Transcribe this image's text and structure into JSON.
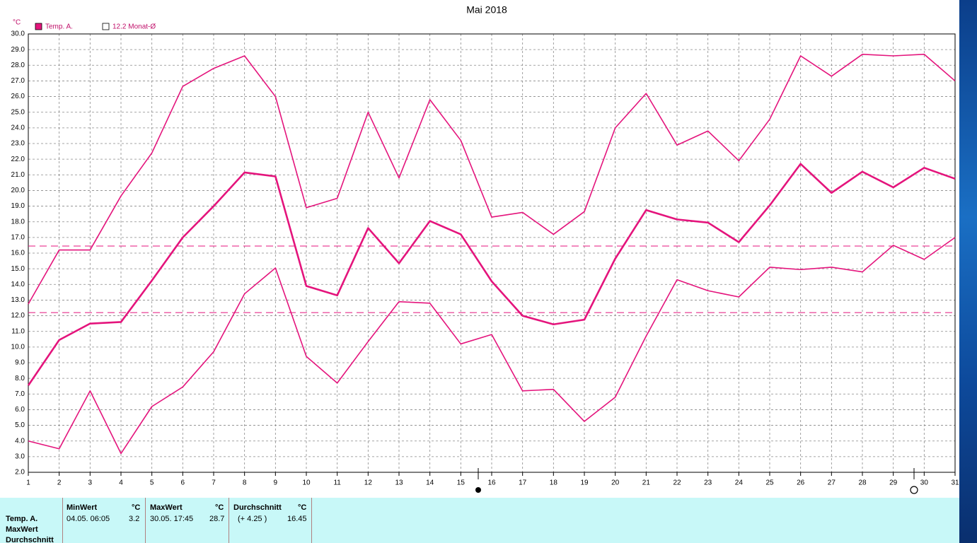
{
  "chart_data": {
    "type": "line",
    "title": "Mai 2018",
    "y_unit": "°C",
    "x": [
      1,
      2,
      3,
      4,
      5,
      6,
      7,
      8,
      9,
      10,
      11,
      12,
      13,
      14,
      15,
      16,
      17,
      18,
      19,
      20,
      21,
      22,
      23,
      24,
      25,
      26,
      27,
      28,
      29,
      30,
      31
    ],
    "xlim": [
      1,
      31
    ],
    "xticks": [
      1,
      2,
      3,
      4,
      5,
      6,
      7,
      8,
      9,
      10,
      11,
      12,
      13,
      14,
      15,
      16,
      17,
      18,
      19,
      20,
      21,
      22,
      23,
      24,
      25,
      26,
      27,
      28,
      29,
      30,
      31
    ],
    "ylim": [
      2,
      30
    ],
    "yticks": [
      {
        "value": 2,
        "label": "2.0"
      },
      {
        "value": 3,
        "label": "3.0"
      },
      {
        "value": 4,
        "label": "4.0"
      },
      {
        "value": 5,
        "label": "5.0"
      },
      {
        "value": 6,
        "label": "6.0"
      },
      {
        "value": 7,
        "label": "7.0"
      },
      {
        "value": 8,
        "label": "8.0"
      },
      {
        "value": 9,
        "label": "9.0"
      },
      {
        "value": 10,
        "label": "10.0"
      },
      {
        "value": 11,
        "label": "11.0"
      },
      {
        "value": 12,
        "label": "12.0"
      },
      {
        "value": 13,
        "label": "13.0"
      },
      {
        "value": 14,
        "label": "14.0"
      },
      {
        "value": 15,
        "label": "15.0"
      },
      {
        "value": 16,
        "label": "16.0"
      },
      {
        "value": 17,
        "label": "17.0"
      },
      {
        "value": 18,
        "label": "18.0"
      },
      {
        "value": 19,
        "label": "19.0"
      },
      {
        "value": 20,
        "label": "20.0"
      },
      {
        "value": 21,
        "label": "21.0"
      },
      {
        "value": 22,
        "label": "22.0"
      },
      {
        "value": 23,
        "label": "23.0"
      },
      {
        "value": 24,
        "label": "24.0"
      },
      {
        "value": 25,
        "label": "25.0"
      },
      {
        "value": 26,
        "label": "26.0"
      },
      {
        "value": 27,
        "label": "27.0"
      },
      {
        "value": 28,
        "label": "28.0"
      },
      {
        "value": 29,
        "label": "29.0"
      },
      {
        "value": 30,
        "label": "30.0"
      }
    ],
    "grid": true,
    "series": [
      {
        "name": "Temp. A.",
        "color": "#e4147c",
        "width": 2.6,
        "values": [
          7.55,
          10.45,
          11.5,
          11.6,
          14.25,
          17.0,
          19.0,
          21.15,
          20.9,
          13.9,
          13.3,
          17.6,
          15.35,
          18.05,
          17.2,
          14.2,
          12.0,
          11.45,
          11.75,
          15.65,
          18.75,
          18.15,
          17.95,
          16.7,
          19.05,
          21.7,
          19.85,
          21.2,
          20.2,
          21.45,
          20.75
        ]
      },
      {
        "color": "#e4147c",
        "width": 1.6,
        "values": [
          12.75,
          16.2,
          16.2,
          19.65,
          22.4,
          26.65,
          27.8,
          28.6,
          26.0,
          18.9,
          19.5,
          25.0,
          20.8,
          25.8,
          23.2,
          18.3,
          18.6,
          17.2,
          18.65,
          24.0,
          26.2,
          22.9,
          23.8,
          21.9,
          24.55,
          28.6,
          27.3,
          28.7,
          28.6,
          28.7,
          27.0
        ]
      },
      {
        "color": "#e4147c",
        "width": 1.6,
        "values": [
          4.0,
          3.5,
          7.2,
          3.2,
          6.2,
          7.45,
          9.7,
          13.4,
          15.05,
          9.4,
          7.7,
          10.35,
          12.9,
          12.8,
          10.2,
          10.8,
          7.2,
          7.3,
          5.25,
          6.8,
          10.7,
          14.3,
          13.6,
          13.2,
          15.1,
          14.95,
          15.1,
          14.8,
          16.5,
          15.6,
          17.0
        ]
      }
    ],
    "reference_lines": [
      {
        "value": 16.45,
        "color": "#e4147c"
      },
      {
        "value": 12.2,
        "label": "12.2 Monat-Ø",
        "color": "#e4147c"
      }
    ]
  },
  "table": {
    "row_labels": [
      "Temp. A.",
      "MaxWert",
      "Durchschnitt"
    ],
    "columns": [
      {
        "header": "MinWert",
        "unit": "°C",
        "when": "04.05.  06:05",
        "value": "3.2"
      },
      {
        "header": "MaxWert",
        "unit": "°C",
        "when": "30.05.  17:45",
        "value": "28.7"
      },
      {
        "header": "Durchschnitt",
        "unit": "°C",
        "when": "(+ 4.25 )",
        "value": "16.45"
      }
    ]
  }
}
